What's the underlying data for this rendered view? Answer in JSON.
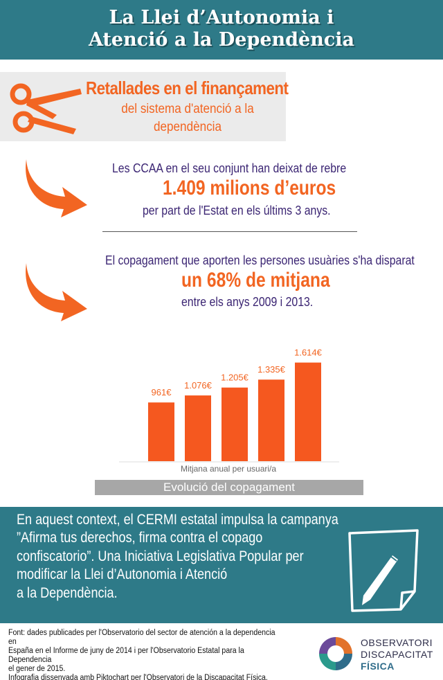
{
  "header": {
    "title_line1": "La Llei d’Autonomia i",
    "title_line2": "Atenció a la Dependència"
  },
  "cuts": {
    "title": "Retallades en el finançament",
    "subtitle": "del sistema d'atenció a la dependència",
    "icon": "scissors-icon"
  },
  "stat1": {
    "line1": "Les CCAA en el seu conjunt han deixat de rebre",
    "highlight": "1.409 milions d’euros",
    "line2": "per part de l'Estat en els últims 3 anys."
  },
  "stat2": {
    "line1": "El copagament que aporten les persones usuàries s'ha disparat",
    "highlight": "un 68% de mitjana",
    "line2": "entre els anys 2009 i 2013."
  },
  "colors": {
    "teal": "#2e7a88",
    "orange": "#f26522",
    "purple": "#3b2573",
    "bar": "#f5581f"
  },
  "chart_data": {
    "type": "bar",
    "categories": [
      "",
      "",
      "",
      "",
      ""
    ],
    "values": [
      961,
      1076,
      1205,
      1335,
      1614
    ],
    "data_labels": [
      "961€",
      "1.076€",
      "1.205€",
      "1.335€",
      "1.614€"
    ],
    "xlabel": "Mitjana anual per usuari/a",
    "title": "Evolució del copagament",
    "ylim": [
      0,
      1700
    ],
    "grid": false
  },
  "campaign": {
    "line1": "En aquest context, el CERMI estatal impulsa la campanya",
    "line2": "”Afirma tus derechos, firma contra el copago",
    "line3": "confiscatorio”. Una Iniciativa Legislativa Popular per",
    "line4": "modificar la Llei d’Autonomia i Atenció",
    "line5": "a la Dependència.",
    "icon": "document-pen-icon"
  },
  "footer": {
    "line1": "Font: dades publicades per l'Observatorio del sector de atención a la dependencia en",
    "line2": "España en el Informe de juny de 2014 i per l'Observatorio Estatal para la Dependencia",
    "line3": "el gener de 2015.",
    "line4": "Infografia dissenyada amb Piktochart per l'Observatori de la Discapacitat Física."
  },
  "logo": {
    "line1": "OBSERVATORI",
    "line2": "DISCAPACITAT",
    "line3": "FÍSICA"
  }
}
